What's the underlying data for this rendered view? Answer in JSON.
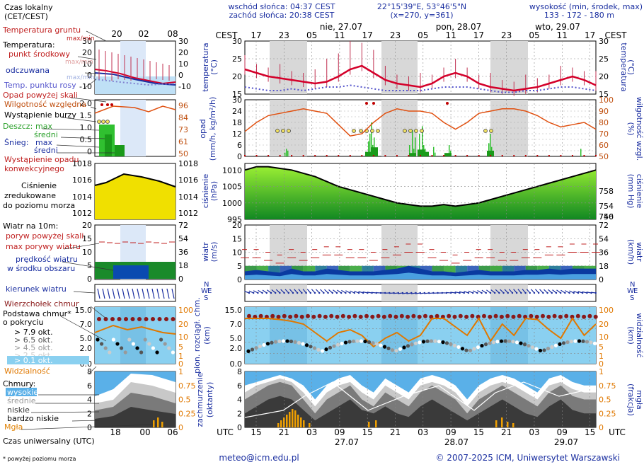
{
  "header": {
    "sunrise": "wschód słońca: 04:37 CEST",
    "sunset": "zachód słońca: 20:38 CEST",
    "coords": "22°15'39\"E, 53°46'5\"N",
    "grid": "(x=270, y=361)",
    "height_label": "wysokość (min, środek, max)",
    "height_values": "133 - 172 - 180 m",
    "tz_local": "CEST",
    "tz_utc": "UTC"
  },
  "footer": {
    "email": "meteo@icm.edu.pl",
    "copyright": "© 2007-2025 ICM, Uniwersytet Warszawski",
    "note": "* powyżej poziomu morza"
  },
  "legend": {
    "local_time": "Czas lokalny",
    "local_time_sub": "(CET/CEST)",
    "utc_time": "Czas uniwersalny (UTC)",
    "ground_temp": "Temperatura gruntu",
    "ground_temp_sub": "max/min",
    "temperature": "Temperatura:",
    "dew_point": "punkt środkowy",
    "temp_max_min": "max/min",
    "perceived": "odczuwana",
    "perceived_sub": "max/min",
    "dew_temp": "Temp. punktu rosy",
    "precip_over": "Opad powyżej skali",
    "humidity": "Wilgotność względna",
    "storm": "Wystąpienie burzy",
    "rain": "Deszcz:",
    "rain_max": "max",
    "rain_mean": "średni",
    "snow": "Śnieg:",
    "snow_max": "max",
    "snow_mean": "średni",
    "conv_precip": "Wystąpienie opadu",
    "conv_precip2": "konwekcyjnego",
    "pressure": "Ciśnienie",
    "pressure2": "zredukowane",
    "pressure3": "do poziomu morza",
    "wind_at": "Wiatr na 10m:",
    "gust_over": "poryw powyżej skali",
    "gust_max": "max porywy wiatru",
    "wind_mean": "prędkość wiatru",
    "wind_mean2": "w środku obszaru",
    "wind_dir": "kierunek wiatru",
    "cloud_top": "Wierzchołek chmur",
    "cloud_base": "Podstawa chmur*",
    "cloud_base2": "o pokryciu",
    "okt79": "> 7.9 okt.",
    "okt65": "> 6.5 okt.",
    "okt45": "> 4.5 okt.",
    "okt25": "> 2.5 okt.",
    "okt01": "> 0.1 okt.",
    "visibility": "Widzialność",
    "clouds": "Chmury:",
    "c_high": "wysokie",
    "c_mid": "średnie",
    "c_low": "niskie",
    "c_vlow": "bardzo niskie",
    "fog": "Mgła"
  },
  "axes": {
    "temp_label": "temperatura",
    "temp_unit": "(°C)",
    "precip_label": "opad",
    "precip_unit": "(mm/h, kg/m²/h)",
    "hum_label": "wilgotność wzgl.",
    "hum_unit": "(%)",
    "press_label": "ciśnienie",
    "press_unit": "(hPa)",
    "press_unit_r": "(mm Hg)",
    "wind_label": "wiatr",
    "wind_unit": "(m/s)",
    "wind_unit_r": "(km/h)",
    "cloud_label": "pion. rozciągł. chm.",
    "cloud_unit": "(km)",
    "vis_label": "widzialność",
    "vis_unit": "(km)",
    "cover_label": "zachmurzenie",
    "cover_unit": "(oktanty)",
    "fog_label": "mgła",
    "fog_unit": "(frakcja)",
    "wdir_n": "N",
    "wdir_w": "W",
    "wdir_s": "S",
    "wdir_e": "E",
    "legend_hours_top": [
      "20",
      "02",
      "08"
    ],
    "legend_hours_bottom": [
      "18",
      "00",
      "06"
    ]
  },
  "chart_data": {
    "type": "line",
    "x_local_hours": [
      "17",
      "23",
      "05",
      "11",
      "17",
      "23",
      "05",
      "11",
      "17",
      "23",
      "05",
      "11",
      "17"
    ],
    "x_utc_hours": [
      "15",
      "21",
      "03",
      "09",
      "15",
      "21",
      "03",
      "09",
      "15",
      "21",
      "03",
      "09",
      "15"
    ],
    "days_top": [
      "nie, 27.07",
      "pon, 28.07",
      "wto, 29.07"
    ],
    "days_bottom": [
      "27.07",
      "28.07",
      "29.07"
    ],
    "temp": {
      "ylim": [
        15,
        30
      ],
      "ticks": [
        "30",
        "25",
        "20",
        "15"
      ],
      "ticks_legend": [
        "30",
        "20",
        "10",
        "0",
        "-10"
      ],
      "values": [
        22,
        21,
        20,
        19.5,
        19,
        18.5,
        18,
        18.5,
        20,
        22,
        23,
        21,
        19,
        18,
        17.5,
        17,
        18,
        20,
        21,
        20,
        18,
        17,
        16.5,
        16,
        16.5,
        17,
        18,
        19,
        20,
        19,
        17.5
      ]
    },
    "dew": {
      "values": [
        17,
        16.5,
        16,
        16,
        16.5,
        16,
        16.5,
        17,
        17,
        17.5,
        17,
        16.5,
        16,
        16,
        16,
        16,
        16.5,
        17,
        17,
        17,
        16.5,
        16,
        15.5,
        15.5,
        16,
        16,
        16.5,
        17,
        17,
        16.5,
        16
      ]
    },
    "humidity": {
      "ylim": [
        50,
        100
      ],
      "ticks_r": [
        "100",
        "90",
        "80",
        "70",
        "60",
        "50"
      ],
      "ticks_legend_r": [
        "96",
        "84",
        "73",
        "61",
        "50"
      ],
      "values": [
        72,
        80,
        86,
        88,
        90,
        92,
        90,
        88,
        78,
        68,
        70,
        80,
        88,
        92,
        90,
        90,
        88,
        80,
        74,
        80,
        88,
        90,
        92,
        92,
        90,
        86,
        80,
        76,
        78,
        80,
        74
      ]
    },
    "precip": {
      "ylim": [
        0,
        30
      ],
      "ticks": [
        "30",
        "27",
        "24",
        "21",
        "18",
        "15",
        "12",
        "9",
        "6",
        "3",
        "0"
      ],
      "ticks_legend": [
        "2.0",
        "1.5",
        "1.0",
        "0.5",
        "0"
      ]
    },
    "pressure": {
      "ylim": [
        995,
        1012
      ],
      "ticks": [
        "1010",
        "1005",
        "1000",
        "995"
      ],
      "ticks_r": [
        "758",
        "754",
        "750",
        "746"
      ],
      "ticks_legend": [
        "1018",
        "1016",
        "1014",
        "1012"
      ],
      "values": [
        1010,
        1011,
        1011,
        1010.5,
        1010,
        1009,
        1008,
        1006.5,
        1005,
        1004,
        1003,
        1002,
        1001,
        1000,
        999.5,
        999,
        999,
        999.5,
        999,
        999.5,
        1000,
        1001,
        1002,
        1003,
        1004,
        1005,
        1006,
        1007,
        1008,
        1009,
        1010
      ]
    },
    "wind": {
      "ylim": [
        0,
        20
      ],
      "ticks": [
        "20",
        "15",
        "10",
        "5",
        "0"
      ],
      "ticks_r": [
        "72",
        "54",
        "36",
        "18",
        "0"
      ],
      "ticks_legend": [
        "20",
        "15",
        "10",
        "5",
        "0"
      ],
      "ticks_legend_r": [
        "72",
        "54",
        "36",
        "18",
        "0"
      ],
      "mean": [
        3,
        3.5,
        3,
        2.5,
        4,
        3,
        3,
        4,
        3.5,
        3,
        3,
        3,
        3.5,
        4,
        5,
        4,
        3,
        3,
        2.5,
        3,
        3.5,
        3,
        3,
        3,
        3.5,
        3.5,
        4,
        3.5,
        4,
        4,
        4
      ],
      "gust": [
        8,
        8,
        7,
        6,
        8,
        7,
        8,
        9,
        9,
        8,
        8,
        7,
        8,
        9,
        10,
        10,
        8,
        7,
        6,
        7,
        8,
        8,
        7,
        7,
        8,
        8,
        9,
        9,
        10,
        10,
        10
      ]
    },
    "cloud": {
      "ylim": [
        0,
        15
      ],
      "ticks": [
        "15.0",
        "7.0",
        "5.0",
        "2.0",
        "0.0"
      ],
      "ticks_r": [
        "100",
        "20",
        "10",
        "5",
        "1",
        "0"
      ],
      "ticks_legend": [
        "15.0",
        "7.0",
        "5.0",
        "2.0",
        "0.0"
      ],
      "ticks_legend_r": [
        "100",
        "20",
        "10",
        "5",
        "1",
        "0"
      ]
    },
    "cover": {
      "ylim": [
        0,
        8
      ],
      "ticks": [
        "8",
        "6",
        "4",
        "2",
        "0"
      ],
      "ticks_r": [
        "1",
        "0.75",
        "0.5",
        "0.25",
        "0"
      ],
      "ticks_legend": [
        "8",
        "6",
        "4",
        "2",
        "0"
      ],
      "ticks_legend_r": [
        "1",
        "0.75",
        "0.5",
        "0.25",
        "0"
      ]
    }
  },
  "colors": {
    "temp_line": "#d4002a",
    "dew": "#5555cc",
    "hum": "#e05010",
    "press_fill": "#66dd22",
    "press_legend": "#f0e000",
    "wind_fill": "#0a3aa0",
    "cloud_sky": "#8ad0f0",
    "night": "#d8d8d8",
    "orange": "#e07800"
  }
}
